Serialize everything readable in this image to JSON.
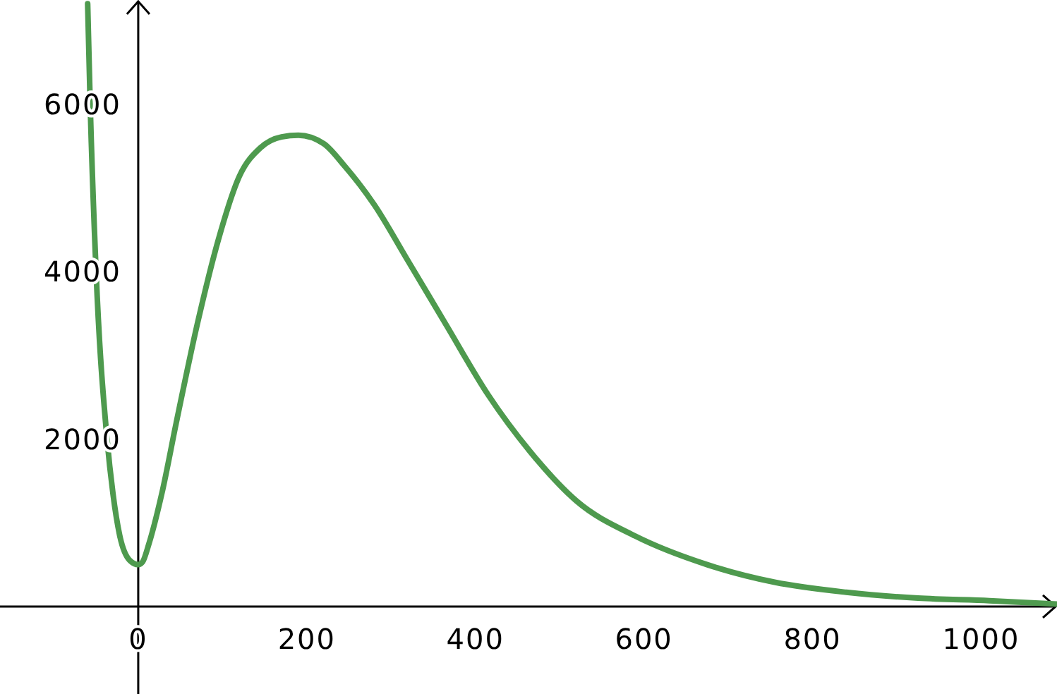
{
  "chart_data": {
    "type": "line",
    "x": [
      -60,
      -57,
      -50,
      -37,
      -30,
      -22,
      -10,
      0,
      5,
      13,
      28,
      45,
      70,
      95,
      120,
      145,
      170,
      190,
      220,
      245,
      280,
      320,
      365,
      415,
      465,
      520,
      590,
      675,
      755,
      840,
      925,
      1010,
      1090
    ],
    "series": [
      {
        "color": "#4e9a4e",
        "values": [
          7200,
          6000,
          4000,
          2000,
          1350,
          850,
          550,
          500,
          530,
          760,
          1350,
          2190,
          3370,
          4380,
          5140,
          5480,
          5610,
          5630,
          5530,
          5260,
          4800,
          4130,
          3370,
          2530,
          1850,
          1260,
          840,
          500,
          290,
          170,
          100,
          70,
          30
        ]
      }
    ],
    "xlim": [
      -164,
      1090
    ],
    "ylim": [
      -1045,
      7245
    ],
    "xticks": [
      0,
      200,
      400,
      600,
      800,
      1000
    ],
    "yticks": [
      2000,
      4000,
      6000
    ],
    "grid": false,
    "marker": "none",
    "line_style": "solid"
  }
}
